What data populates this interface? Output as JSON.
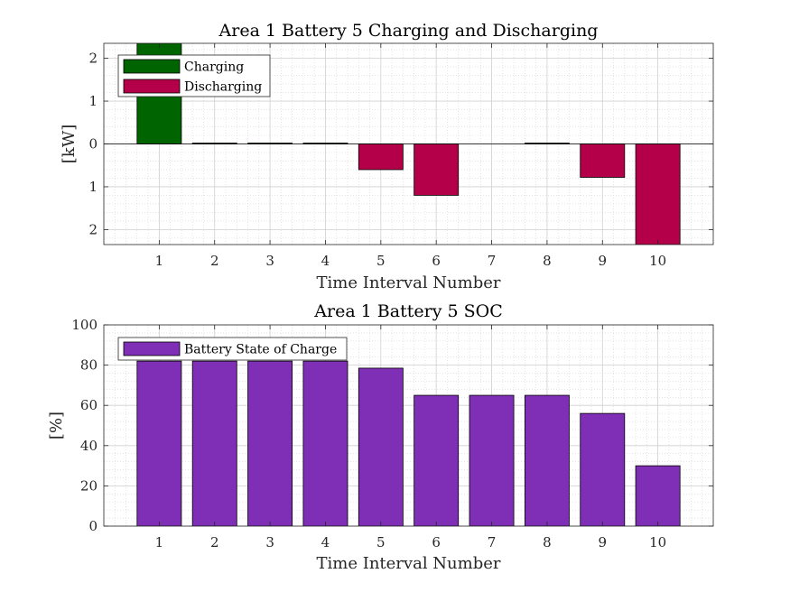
{
  "chart_data": [
    {
      "type": "bar",
      "title": "Area 1 Battery 5 Charging and Discharging",
      "xlabel": "Time Interval Number",
      "ylabel": "[kW]",
      "categories": [
        "1",
        "2",
        "3",
        "4",
        "5",
        "6",
        "7",
        "8",
        "9",
        "10"
      ],
      "series": [
        {
          "name": "Charging",
          "color": "#006400",
          "values": [
            2.4,
            0.02,
            0.02,
            0.02,
            0,
            0,
            0,
            0.02,
            0,
            0
          ]
        },
        {
          "name": "Discharging",
          "color": "#B40048",
          "values": [
            0,
            0,
            0,
            0,
            0.6,
            1.2,
            0,
            0,
            0.78,
            2.4
          ]
        }
      ],
      "ylim": [
        -2.35,
        2.35
      ],
      "yticks": [
        2,
        1,
        0,
        -1,
        -2
      ],
      "ytick_labels": [
        "2",
        "1",
        "0",
        "1",
        "2"
      ],
      "grid": true,
      "minor_grid": true,
      "legend_position": "top-left"
    },
    {
      "type": "bar",
      "title": "Area 1 Battery 5 SOC",
      "xlabel": "Time Interval Number",
      "ylabel": "[%]",
      "categories": [
        "1",
        "2",
        "3",
        "4",
        "5",
        "6",
        "7",
        "8",
        "9",
        "10"
      ],
      "series": [
        {
          "name": "Battery State of Charge",
          "color": "#7E2FB5",
          "values": [
            82,
            82,
            82,
            82,
            78.5,
            65,
            65,
            65,
            56,
            30
          ]
        }
      ],
      "ylim": [
        0,
        100
      ],
      "yticks": [
        0,
        20,
        40,
        60,
        80,
        100
      ],
      "ytick_labels": [
        "0",
        "20",
        "40",
        "60",
        "80",
        "100"
      ],
      "grid": true,
      "minor_grid": true,
      "legend_position": "top-left"
    }
  ]
}
